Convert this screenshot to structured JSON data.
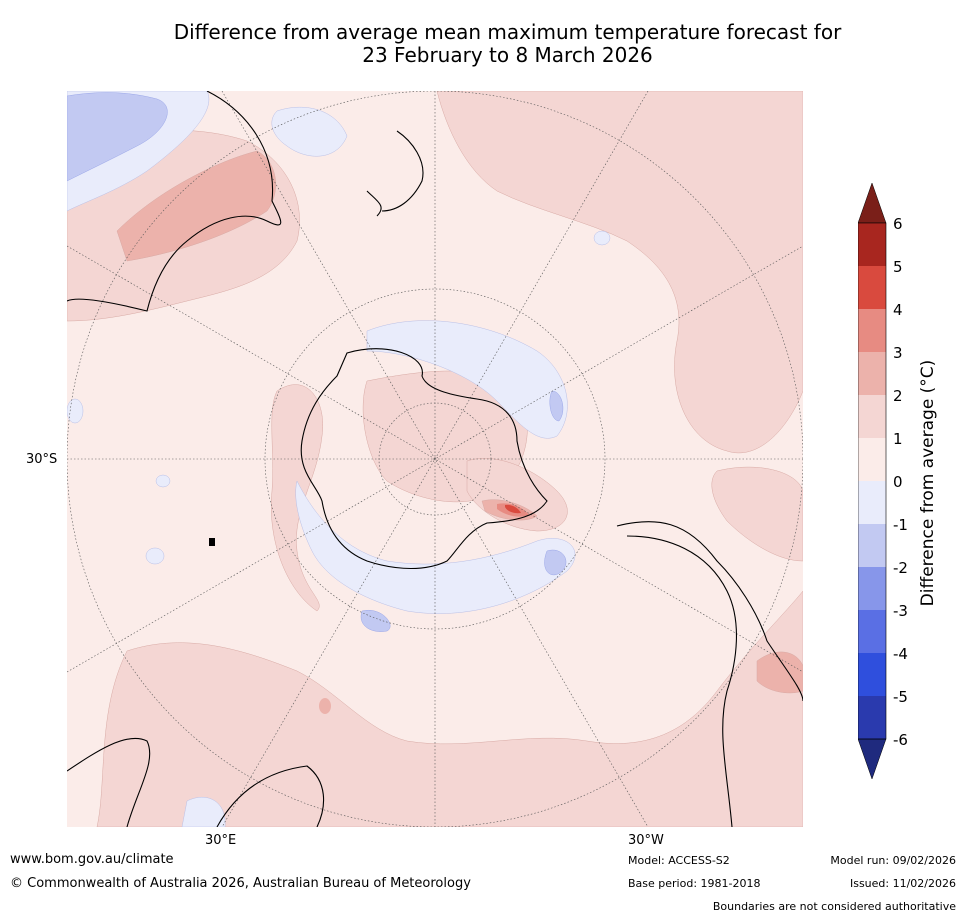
{
  "title": {
    "line1": "Difference from average mean maximum temperature forecast for",
    "line2": "23 February to 8 March 2026"
  },
  "map": {
    "projection": "south-polar",
    "lat_label": "30°S",
    "lon_labels": [
      "30°E",
      "30°W"
    ]
  },
  "colorbar": {
    "title": "Difference from average (°C)",
    "ticks": [
      "6",
      "5",
      "4",
      "3",
      "2",
      "1",
      "0",
      "-1",
      "-2",
      "-3",
      "-4",
      "-5",
      "-6"
    ],
    "colors": {
      "over": "#7a1f19",
      "c5_6": "#a8261f",
      "c4_5": "#d94a3e",
      "c3_4": "#e78b82",
      "c2_3": "#ecb2ab",
      "c1_2": "#f4d6d3",
      "c0_1": "#fbece9",
      "cm1_0": "#e9ecfb",
      "cm2_m1": "#c2c9f2",
      "cm3_m2": "#8796ea",
      "cm4_m3": "#5a6fe4",
      "cm5_m4": "#2f4fdd",
      "cm6_m5": "#2a3aae",
      "under": "#1f2a7e"
    }
  },
  "footer": {
    "website": "www.bom.gov.au/climate",
    "copyright": "© Commonwealth of Australia 2026, Australian Bureau of Meteorology",
    "model": "Model: ACCESS-S2",
    "base_period": "Base period: 1981-2018",
    "model_run": "Model run: 09/02/2026",
    "issued": "Issued: 11/02/2026",
    "disclaimer": "Boundaries are not considered authoritative"
  }
}
